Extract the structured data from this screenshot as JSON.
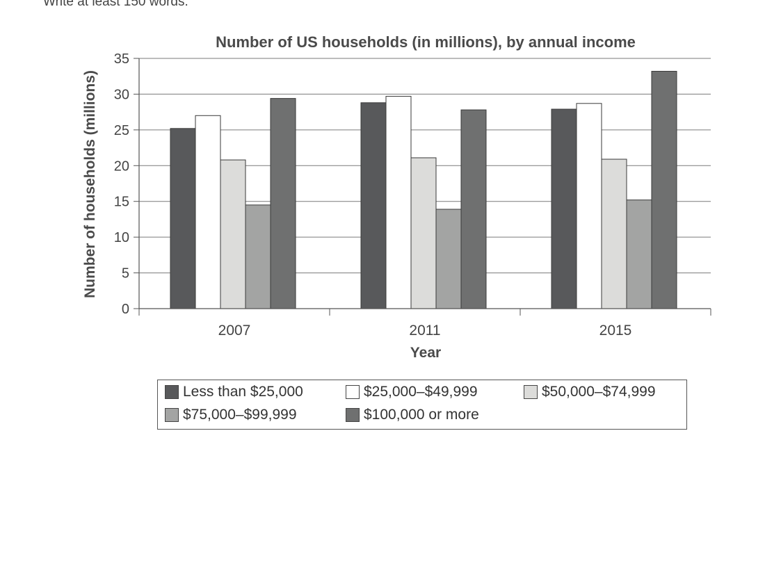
{
  "header": {
    "note": "Write at least 150 words."
  },
  "chart_data": {
    "type": "bar",
    "title": "Number of US households (in millions), by annual income",
    "xlabel": "Year",
    "ylabel": "Number of households (millions)",
    "categories": [
      "2007",
      "2011",
      "2015"
    ],
    "ylim": [
      0,
      35
    ],
    "yticks": [
      "0",
      "5",
      "10",
      "15",
      "20",
      "25",
      "30",
      "35"
    ],
    "grid": true,
    "legend_position": "bottom",
    "series": [
      {
        "name": "Less than $25,000",
        "values": [
          25.2,
          28.8,
          27.9
        ],
        "color": "#58595b"
      },
      {
        "name": "$25,000–$49,999",
        "values": [
          27.0,
          29.7,
          28.7
        ],
        "color": "#ffffff"
      },
      {
        "name": "$50,000–$74,999",
        "values": [
          20.8,
          21.1,
          20.9
        ],
        "color": "#dcdcda"
      },
      {
        "name": "$75,000–$99,999",
        "values": [
          14.5,
          13.9,
          15.2
        ],
        "color": "#a3a4a3"
      },
      {
        "name": "$100,000 or more",
        "values": [
          29.4,
          27.8,
          33.2
        ],
        "color": "#6f7070"
      }
    ]
  }
}
